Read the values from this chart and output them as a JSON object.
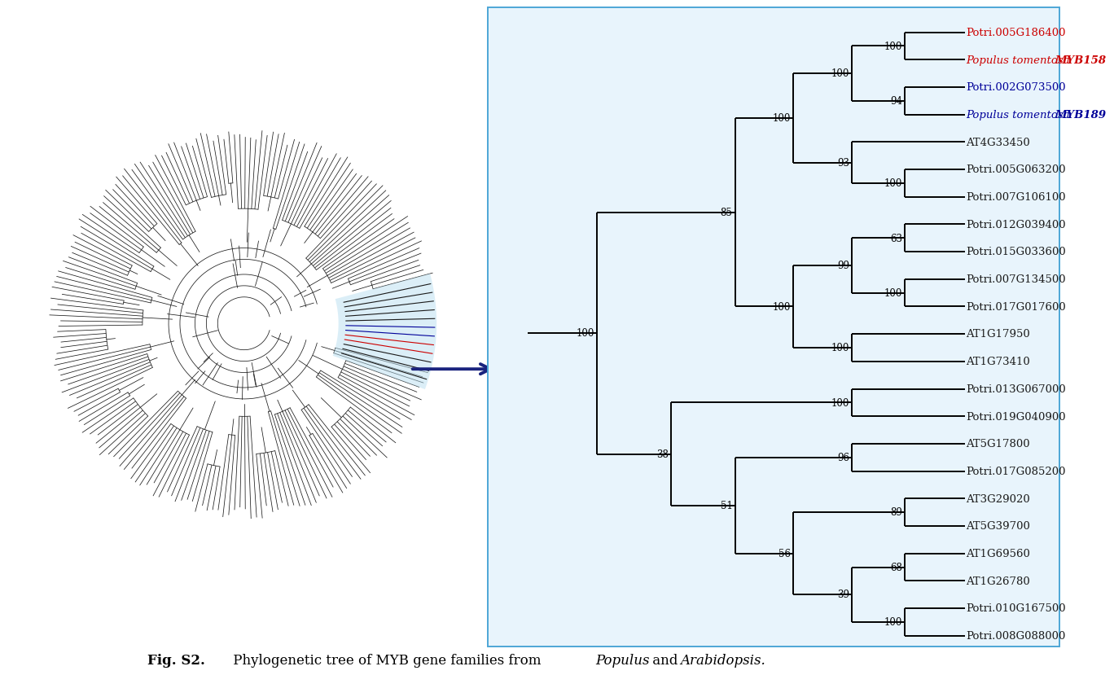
{
  "fig_caption_bold": "Fig. S2.",
  "fig_caption_normal": " Phylogenetic tree of MYB gene families from ",
  "fig_caption_italic1": "Populus",
  "fig_caption_and": " and ",
  "fig_caption_italic2": "Arabidopsis.",
  "box_bg_color": "#e8f4fc",
  "box_edge_color": "#4da6d6",
  "leaves": [
    "Potri.005G186400",
    "Populus tomentosa MYB158",
    "Potri.002G073500",
    "Populus tomentosa MYB189",
    "AT4G33450",
    "Potri.005G063200",
    "Potri.007G106100",
    "Potri.012G039400",
    "Potri.015G033600",
    "Potri.007G134500",
    "Potri.017G017600",
    "AT1G17950",
    "AT1G73410",
    "Potri.013G067000",
    "Potri.019G040900",
    "AT5G17800",
    "Potri.017G085200",
    "AT3G29020",
    "AT5G39700",
    "AT1G69560",
    "AT1G26780",
    "Potri.010G167500",
    "Potri.008G088000"
  ],
  "leaf_colors": [
    "#cc0000",
    "#cc0000",
    "#000099",
    "#000099",
    "#1a1a1a",
    "#1a1a1a",
    "#1a1a1a",
    "#1a1a1a",
    "#1a1a1a",
    "#1a1a1a",
    "#1a1a1a",
    "#1a1a1a",
    "#1a1a1a",
    "#1a1a1a",
    "#1a1a1a",
    "#1a1a1a",
    "#1a1a1a",
    "#1a1a1a",
    "#1a1a1a",
    "#1a1a1a",
    "#1a1a1a",
    "#1a1a1a",
    "#1a1a1a"
  ],
  "leaf_styles": [
    {
      "italic": false,
      "bold": false
    },
    {
      "italic": true,
      "bold": true
    },
    {
      "italic": false,
      "bold": false
    },
    {
      "italic": true,
      "bold": true
    },
    {
      "italic": false,
      "bold": false
    },
    {
      "italic": false,
      "bold": false
    },
    {
      "italic": false,
      "bold": false
    },
    {
      "italic": false,
      "bold": false
    },
    {
      "italic": false,
      "bold": false
    },
    {
      "italic": false,
      "bold": false
    },
    {
      "italic": false,
      "bold": false
    },
    {
      "italic": false,
      "bold": false
    },
    {
      "italic": false,
      "bold": false
    },
    {
      "italic": false,
      "bold": false
    },
    {
      "italic": false,
      "bold": false
    },
    {
      "italic": false,
      "bold": false
    },
    {
      "italic": false,
      "bold": false
    },
    {
      "italic": false,
      "bold": false
    },
    {
      "italic": false,
      "bold": false
    },
    {
      "italic": false,
      "bold": false
    },
    {
      "italic": false,
      "bold": false
    },
    {
      "italic": false,
      "bold": false
    },
    {
      "italic": false,
      "bold": false
    }
  ],
  "arrow_color": "#1a237e",
  "circ_tree_color": "#1a1a1a",
  "highlight_fill": "#b8dff0",
  "highlight_alpha": 0.5
}
